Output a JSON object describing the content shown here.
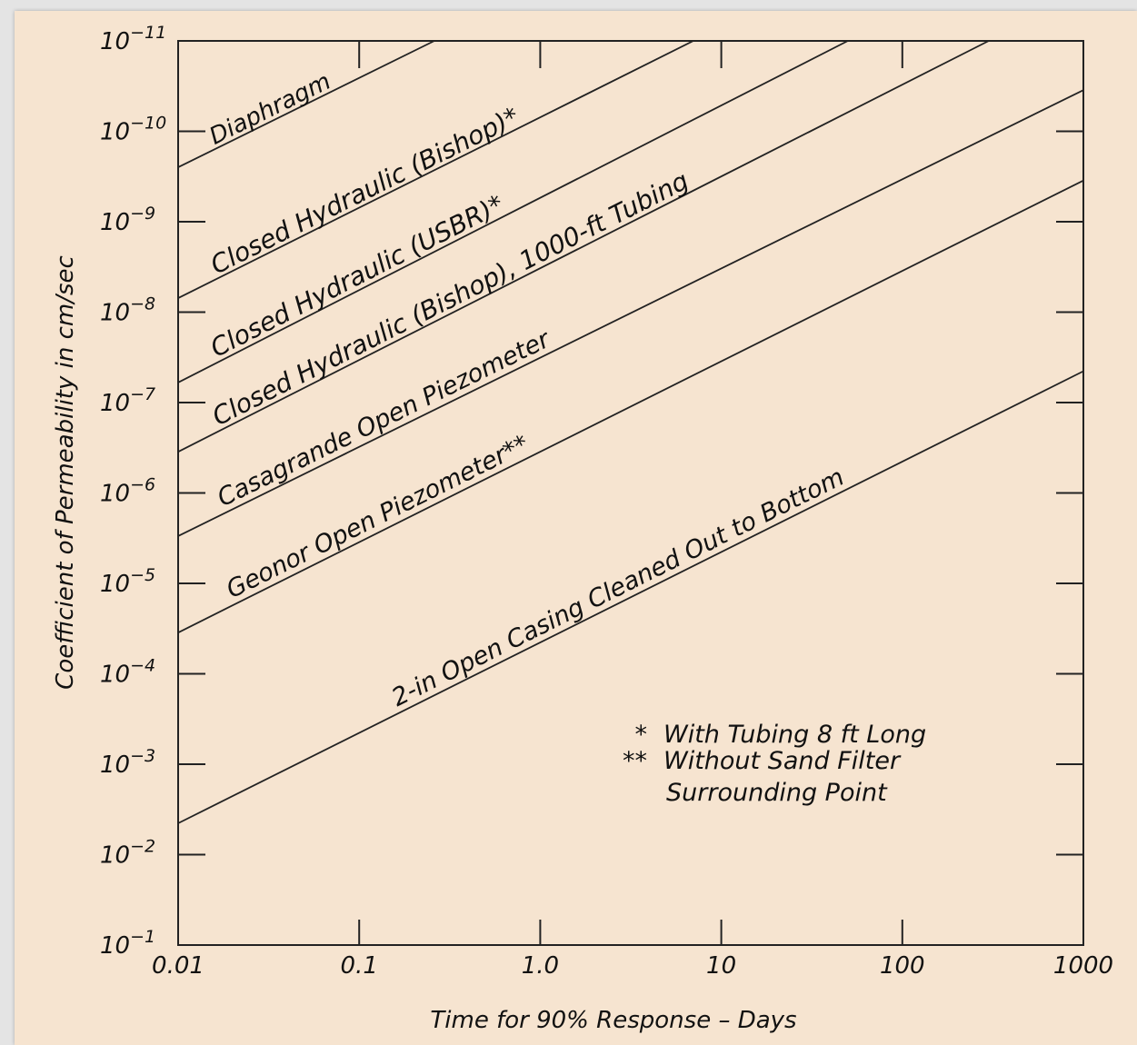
{
  "chart_data": {
    "type": "line",
    "title": "",
    "xlabel": "Time for 90% Response – Days",
    "ylabel": "Coefficient of Permeability in cm/sec",
    "x_scale": "log",
    "y_scale": "log",
    "x_ticks": [
      "0.01",
      "0.1",
      "1.0",
      "10",
      "100",
      "1000"
    ],
    "x_tick_values": [
      0.01,
      0.1,
      1,
      10,
      100,
      1000
    ],
    "y_tick_exponents": [
      "-11",
      "-10",
      "-9",
      "-8",
      "-7",
      "-6",
      "-5",
      "-4",
      "-3",
      "-2",
      "-1"
    ],
    "y_tick_values": [
      1e-11,
      1e-10,
      1e-09,
      1e-08,
      1e-07,
      1e-06,
      1e-05,
      0.0001,
      0.001,
      0.01,
      0.1
    ],
    "xlim": [
      0.01,
      1000
    ],
    "ylim": [
      1e-11,
      0.1
    ],
    "y_inverted": true,
    "grid": false,
    "series": [
      {
        "name": "Diaphragm",
        "x": [
          0.01,
          0.26
        ],
        "y": [
          2.5e-10,
          1e-11
        ]
      },
      {
        "name": "Closed Hydraulic (Bishop)*",
        "x": [
          0.01,
          7
        ],
        "y": [
          7e-09,
          1e-11
        ]
      },
      {
        "name": "Closed Hydraulic (USBR)*",
        "x": [
          0.01,
          50
        ],
        "y": [
          6e-08,
          1e-11
        ]
      },
      {
        "name": "Closed Hydraulic (Bishop), 1000-ft Tubing",
        "x": [
          0.01,
          300
        ],
        "y": [
          3.5e-07,
          1e-11
        ]
      },
      {
        "name": "Casagrande Open Piezometer",
        "x": [
          0.01,
          1000
        ],
        "y": [
          3e-06,
          3.5e-11
        ]
      },
      {
        "name": "Geonor Open Piezometer**",
        "x": [
          0.01,
          1000
        ],
        "y": [
          3.5e-05,
          3.5e-10
        ]
      },
      {
        "name": "2-in Open Casing Cleaned Out to Bottom",
        "x": [
          0.01,
          1000
        ],
        "y": [
          0.0045,
          4.5e-08
        ]
      }
    ],
    "notes": [
      {
        "mark": "*",
        "text": "With Tubing 8 ft Long"
      },
      {
        "mark": "**",
        "text": "Without Sand Filter"
      },
      {
        "mark": "",
        "text": "Surrounding Point"
      }
    ]
  }
}
